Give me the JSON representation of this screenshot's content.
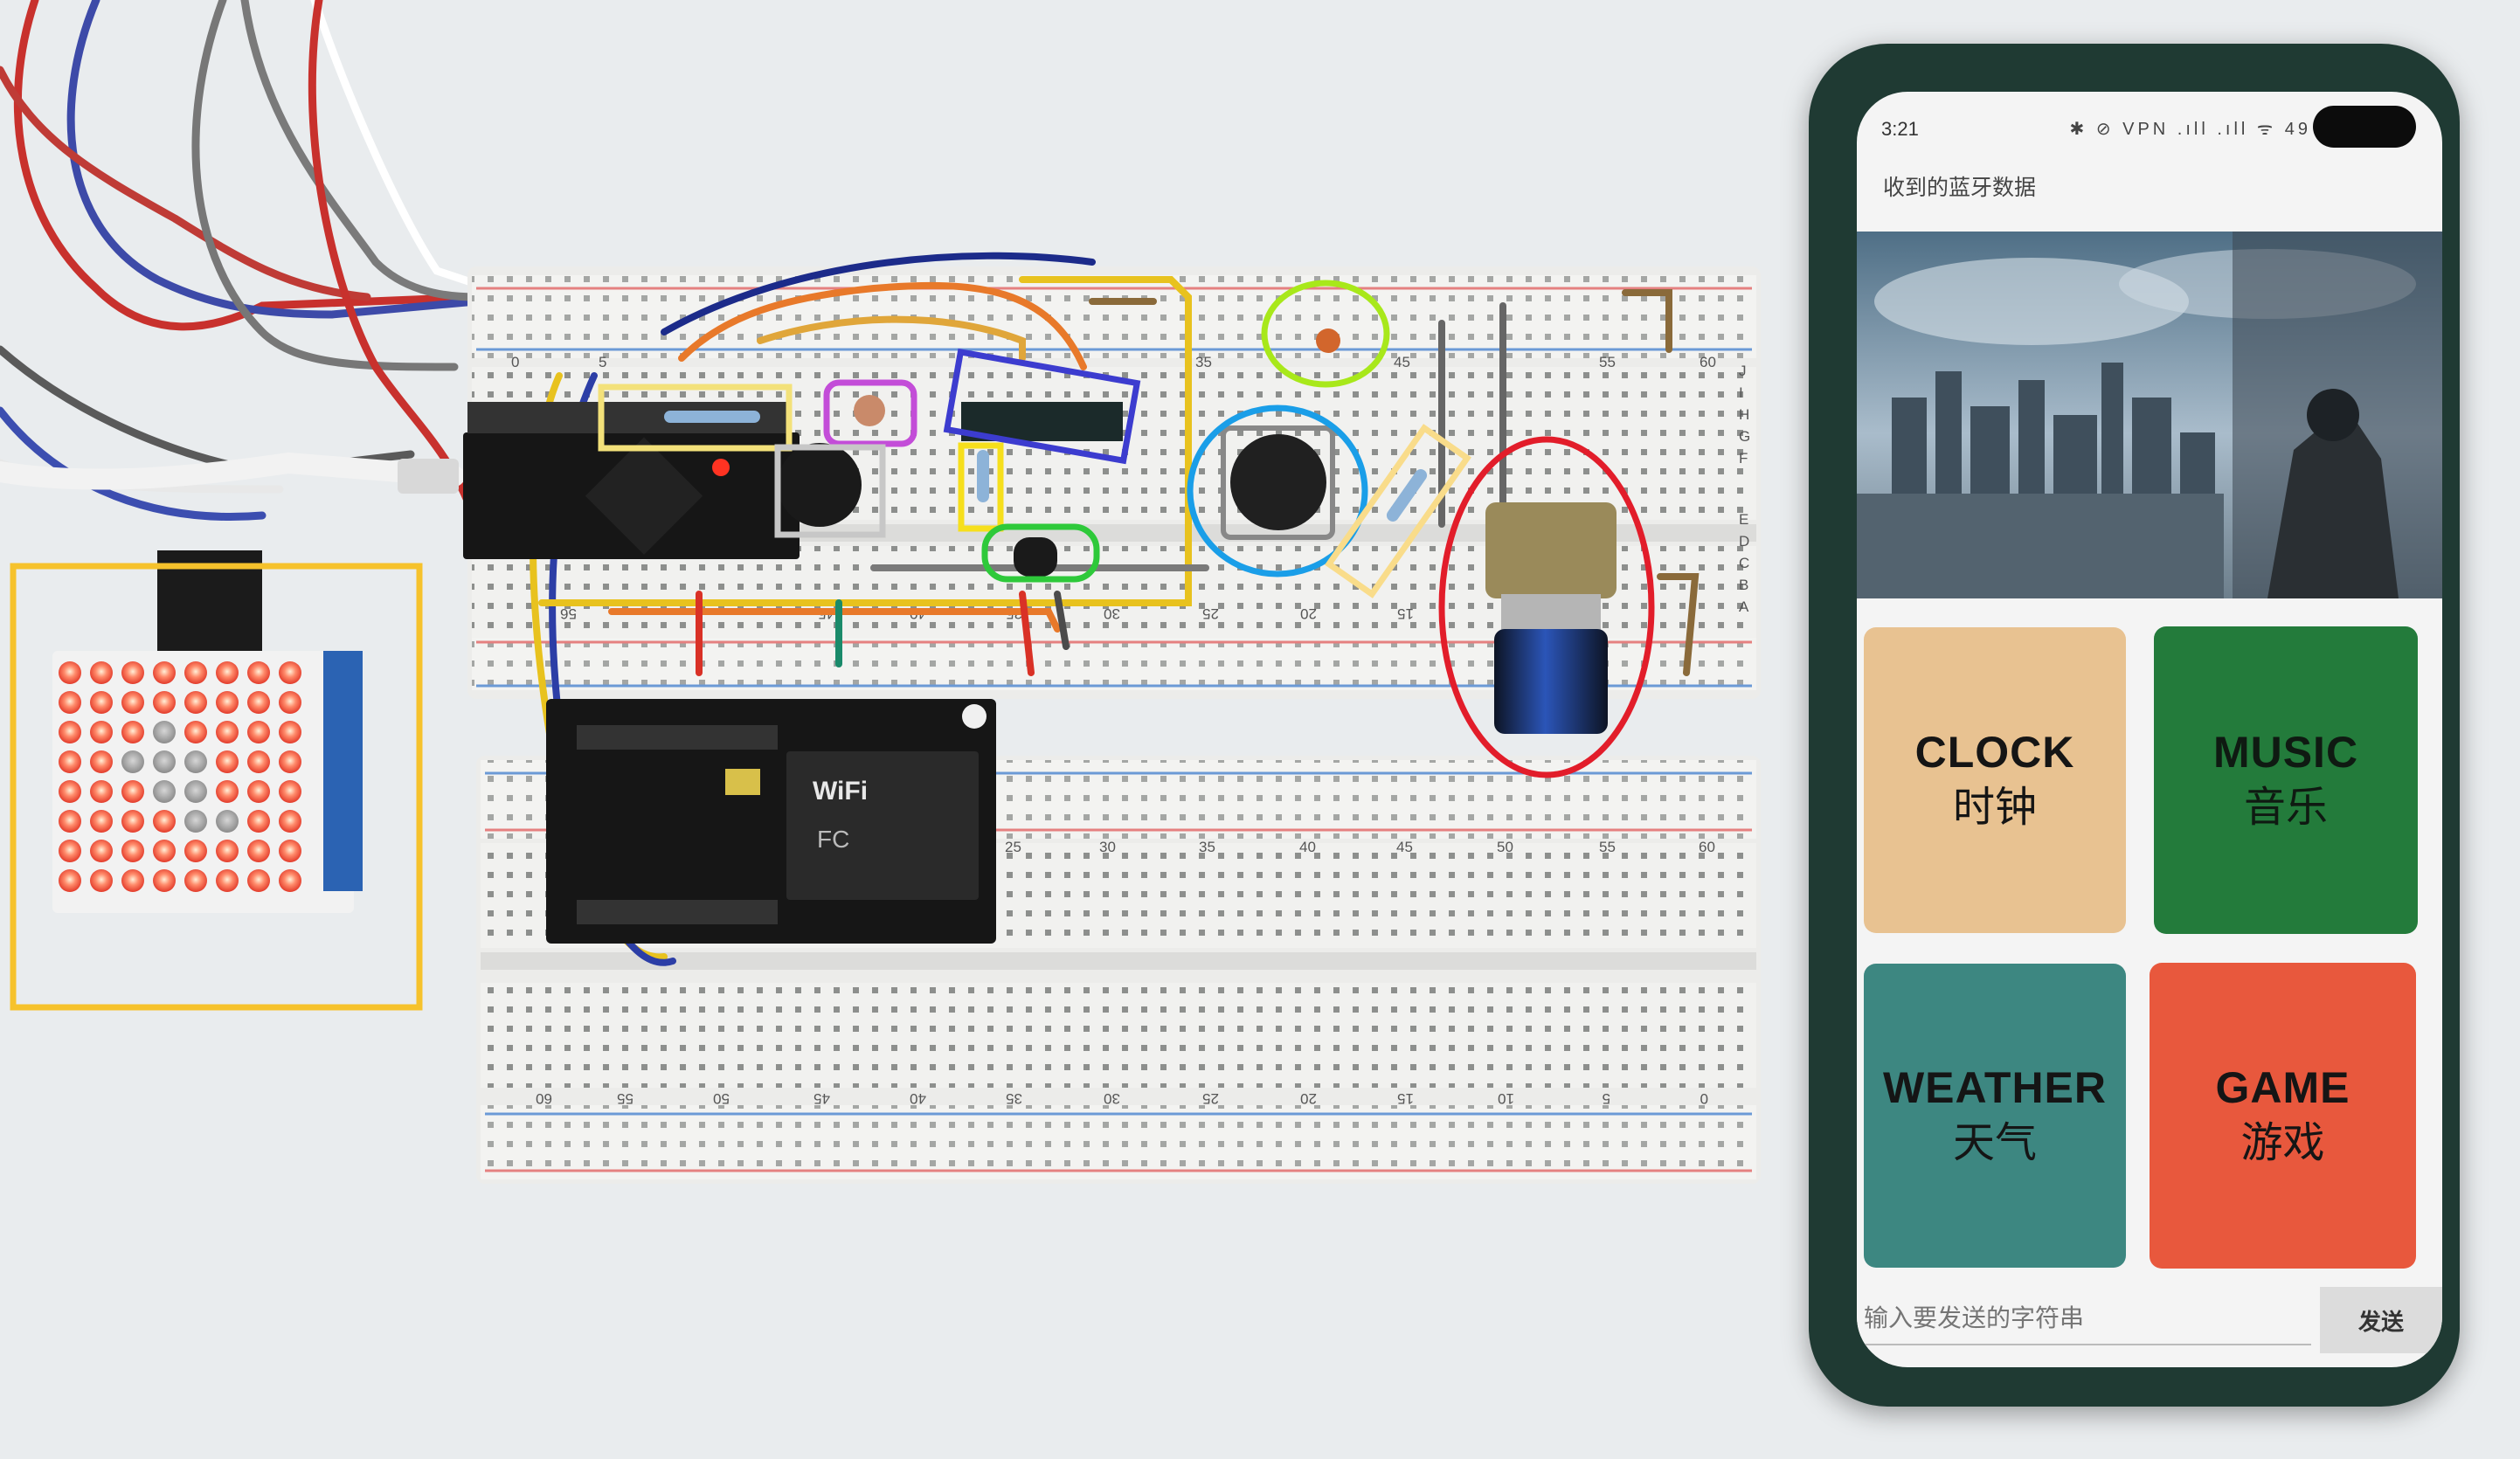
{
  "scene": {
    "breadboard_top_numbers": [
      "0",
      "5",
      "35",
      "45",
      "55",
      "60"
    ],
    "breadboard_mid_numbers": [
      "56",
      "45",
      "40",
      "35",
      "30",
      "25",
      "20",
      "15"
    ],
    "breadboard_bottom_top_numbers": [
      "25",
      "30",
      "35",
      "40",
      "45",
      "50",
      "55",
      "60"
    ],
    "breadboard_bottom_numbers": [
      "60",
      "55",
      "50",
      "45",
      "40",
      "35",
      "30",
      "25",
      "20",
      "15",
      "10",
      "5",
      "0"
    ],
    "row_letters_upper": [
      "J",
      "I",
      "H",
      "G",
      "F"
    ],
    "row_letters_lower": [
      "E",
      "D",
      "C",
      "B",
      "A"
    ],
    "wifi_label": "WiFi",
    "fc_label": "FC",
    "annotation_colors": {
      "matrix_box": "#f6c22c",
      "resistor_box": "#f3e17a",
      "photoresistor_box": "#c34dd8",
      "buzzer_box": "#c7c7c7",
      "sensor_box": "#3c3ccf",
      "small_resistor_box": "#f6df1c",
      "transistor_box": "#2ec93a",
      "capacitor_circle": "#a8e81a",
      "button_circle": "#1a9ee8",
      "angled_resistor_box": "#f9dc8a",
      "potentiometer_circle": "#e21d2a"
    }
  },
  "phone": {
    "status_time": "3:21",
    "status_icons": "✱ ⊘ VPN .ıll .ıll ᯤ 49",
    "app_title": "收到的蓝牙数据",
    "tiles": [
      {
        "en": "CLOCK",
        "zh": "时钟",
        "color": "#e8c291"
      },
      {
        "en": "MUSIC",
        "zh": "音乐",
        "color": "#237b3b"
      },
      {
        "en": "WEATHER",
        "zh": "天气",
        "color": "#3d8781"
      },
      {
        "en": "GAME",
        "zh": "游戏",
        "color": "#e8583d"
      }
    ],
    "input_placeholder": "输入要发送的字符串",
    "send_label": "发送"
  }
}
